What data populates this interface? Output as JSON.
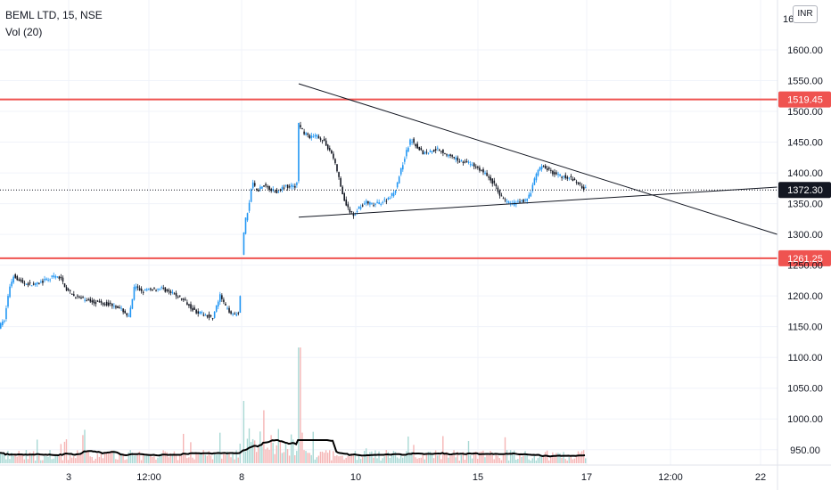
{
  "legend": {
    "symbol": "BEML LTD, 15, NSE",
    "volume": "Vol (20)"
  },
  "currency": "INR",
  "colors": {
    "up": "#2196f3",
    "down": "#131722",
    "hline": "#ef5350",
    "vol_up": "#a8d8d4",
    "vol_down": "#f5b5b5",
    "price_tag": "#131722"
  },
  "chart_data": {
    "type": "candlestick",
    "yaxis": {
      "ticks": [
        "1600.00",
        "1550.00",
        "1500.00",
        "1450.00",
        "1400.00",
        "1350.00",
        "1300.00",
        "1250.00",
        "1200.00",
        "1150.00",
        "1100.00",
        "1050.00",
        "1000.00",
        "950.00"
      ],
      "tick_values": [
        1600,
        1550,
        1500,
        1450,
        1400,
        1350,
        1300,
        1250,
        1200,
        1150,
        1100,
        1050,
        1000,
        950
      ],
      "top_partial_label": "16"
    },
    "xaxis": {
      "ticks": [
        "3",
        "12:00",
        "8",
        "10",
        "15",
        "17",
        "12:00",
        "22"
      ]
    },
    "horizontal_lines": [
      {
        "value": 1519.45,
        "label": "1519.45"
      },
      {
        "value": 1261.25,
        "label": "1261.25"
      }
    ],
    "last_price": {
      "value": 1372.3,
      "label": "1372.30"
    },
    "trendlines": [
      {
        "name": "descending",
        "from": 1545,
        "to": 1300
      },
      {
        "name": "ascending",
        "from": 1328,
        "to": 1377
      }
    ],
    "volume_series": "Vol (20)"
  }
}
